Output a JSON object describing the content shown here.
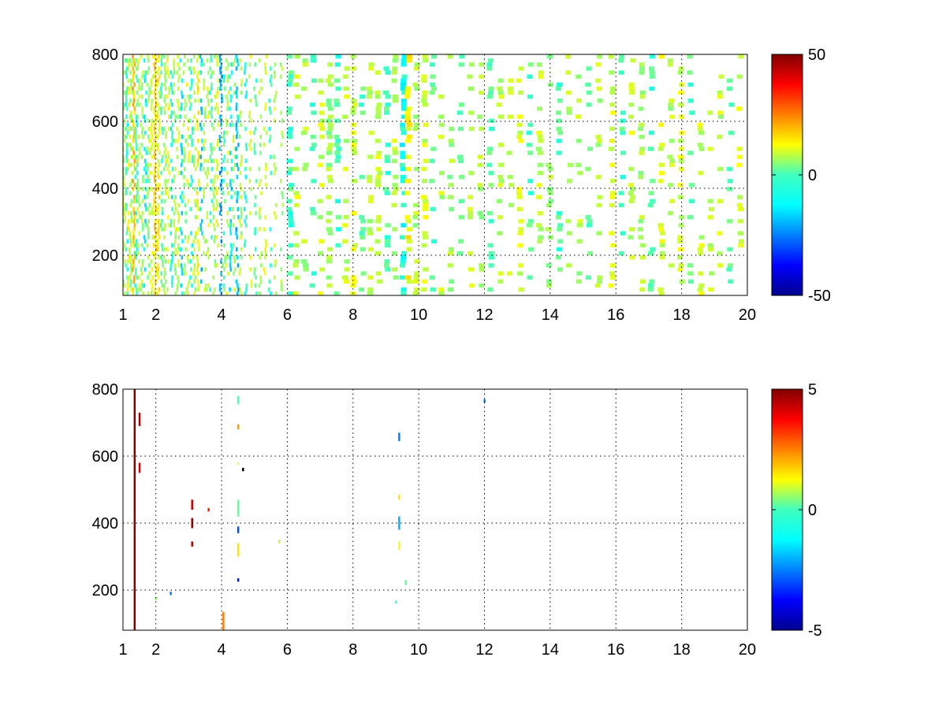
{
  "chart_data": [
    {
      "type": "heatmap",
      "panel": "top",
      "xlim": [
        1,
        20
      ],
      "ylim": [
        80,
        800
      ],
      "x_ticks": [
        1,
        2,
        4,
        6,
        8,
        10,
        12,
        14,
        16,
        18,
        20
      ],
      "y_ticks": [
        200,
        400,
        600,
        800
      ],
      "grid": true,
      "colorbar": {
        "min": -50,
        "max": 50,
        "ticks": [
          50,
          0,
          -50
        ],
        "colormap": "jet"
      },
      "columns": [
        {
          "x": 1.0,
          "v": 5,
          "d": 0.55
        },
        {
          "x": 1.08,
          "v": -8,
          "d": 0.6
        },
        {
          "x": 1.15,
          "v": 10,
          "d": 0.5
        },
        {
          "x": 1.22,
          "v": 3,
          "d": 0.6
        },
        {
          "x": 1.3,
          "v": 18,
          "d": 0.92
        },
        {
          "x": 1.38,
          "v": -6,
          "d": 0.55
        },
        {
          "x": 1.45,
          "v": 6,
          "d": 0.6
        },
        {
          "x": 1.55,
          "v": 4,
          "d": 0.55
        },
        {
          "x": 1.65,
          "v": -12,
          "d": 0.5
        },
        {
          "x": 1.75,
          "v": 2,
          "d": 0.6
        },
        {
          "x": 1.85,
          "v": 8,
          "d": 0.5
        },
        {
          "x": 1.95,
          "v": 15,
          "d": 0.85
        },
        {
          "x": 2.05,
          "v": 12,
          "d": 0.8
        },
        {
          "x": 2.15,
          "v": -5,
          "d": 0.55
        },
        {
          "x": 2.25,
          "v": 4,
          "d": 0.6
        },
        {
          "x": 2.35,
          "v": 10,
          "d": 0.5
        },
        {
          "x": 2.45,
          "v": -10,
          "d": 0.5
        },
        {
          "x": 2.55,
          "v": 3,
          "d": 0.55
        },
        {
          "x": 2.65,
          "v": 6,
          "d": 0.5
        },
        {
          "x": 2.75,
          "v": -14,
          "d": 0.55
        },
        {
          "x": 2.85,
          "v": 2,
          "d": 0.5
        },
        {
          "x": 2.95,
          "v": 9,
          "d": 0.45
        },
        {
          "x": 3.05,
          "v": -8,
          "d": 0.5
        },
        {
          "x": 3.15,
          "v": 5,
          "d": 0.45
        },
        {
          "x": 3.25,
          "v": 12,
          "d": 0.5
        },
        {
          "x": 3.35,
          "v": -16,
          "d": 0.45
        },
        {
          "x": 3.45,
          "v": 4,
          "d": 0.45
        },
        {
          "x": 3.55,
          "v": 7,
          "d": 0.4
        },
        {
          "x": 3.65,
          "v": -6,
          "d": 0.45
        },
        {
          "x": 3.75,
          "v": 3,
          "d": 0.4
        },
        {
          "x": 3.85,
          "v": 10,
          "d": 0.45
        },
        {
          "x": 3.95,
          "v": -20,
          "d": 0.55
        },
        {
          "x": 4.05,
          "v": -4,
          "d": 0.4
        },
        {
          "x": 4.15,
          "v": 6,
          "d": 0.4
        },
        {
          "x": 4.25,
          "v": -12,
          "d": 0.4
        },
        {
          "x": 4.35,
          "v": 3,
          "d": 0.35
        },
        {
          "x": 4.45,
          "v": -18,
          "d": 0.6
        },
        {
          "x": 4.55,
          "v": 5,
          "d": 0.4
        },
        {
          "x": 4.7,
          "v": -9,
          "d": 0.4
        },
        {
          "x": 4.85,
          "v": 8,
          "d": 0.35
        },
        {
          "x": 5.0,
          "v": -5,
          "d": 0.35
        },
        {
          "x": 5.15,
          "v": 4,
          "d": 0.35
        },
        {
          "x": 5.3,
          "v": 10,
          "d": 0.35
        },
        {
          "x": 5.45,
          "v": -7,
          "d": 0.3
        },
        {
          "x": 5.6,
          "v": 6,
          "d": 0.3
        },
        {
          "x": 5.8,
          "v": 3,
          "d": 0.3
        },
        {
          "x": 6.0,
          "v": -6,
          "d": 0.3
        },
        {
          "x": 6.2,
          "v": 8,
          "d": 0.3
        },
        {
          "x": 6.45,
          "v": 4,
          "d": 0.28
        },
        {
          "x": 6.7,
          "v": -5,
          "d": 0.28
        },
        {
          "x": 6.95,
          "v": 7,
          "d": 0.28
        },
        {
          "x": 7.2,
          "v": 3,
          "d": 0.26
        },
        {
          "x": 7.45,
          "v": -6,
          "d": 0.26
        },
        {
          "x": 7.7,
          "v": 6,
          "d": 0.26
        },
        {
          "x": 7.95,
          "v": 8,
          "d": 0.3
        },
        {
          "x": 8.2,
          "v": -4,
          "d": 0.26
        },
        {
          "x": 8.45,
          "v": 5,
          "d": 0.26
        },
        {
          "x": 8.7,
          "v": 7,
          "d": 0.26
        },
        {
          "x": 8.95,
          "v": -5,
          "d": 0.28
        },
        {
          "x": 9.2,
          "v": 6,
          "d": 0.3
        },
        {
          "x": 9.45,
          "v": -10,
          "d": 0.55
        },
        {
          "x": 9.6,
          "v": 12,
          "d": 0.4
        },
        {
          "x": 9.85,
          "v": 5,
          "d": 0.3
        },
        {
          "x": 10.1,
          "v": 8,
          "d": 0.4
        },
        {
          "x": 10.35,
          "v": -4,
          "d": 0.28
        },
        {
          "x": 10.6,
          "v": 6,
          "d": 0.25
        },
        {
          "x": 10.9,
          "v": 3,
          "d": 0.25
        },
        {
          "x": 11.2,
          "v": -5,
          "d": 0.25
        },
        {
          "x": 11.5,
          "v": 7,
          "d": 0.25
        },
        {
          "x": 11.8,
          "v": 4,
          "d": 0.25
        },
        {
          "x": 12.1,
          "v": -3,
          "d": 0.22
        },
        {
          "x": 12.4,
          "v": 6,
          "d": 0.22
        },
        {
          "x": 12.7,
          "v": 5,
          "d": 0.22
        },
        {
          "x": 13.0,
          "v": 8,
          "d": 0.3
        },
        {
          "x": 13.3,
          "v": -4,
          "d": 0.22
        },
        {
          "x": 13.6,
          "v": 6,
          "d": 0.22
        },
        {
          "x": 13.9,
          "v": 4,
          "d": 0.24
        },
        {
          "x": 14.2,
          "v": -5,
          "d": 0.24
        },
        {
          "x": 14.5,
          "v": 7,
          "d": 0.22
        },
        {
          "x": 14.8,
          "v": 5,
          "d": 0.22
        },
        {
          "x": 15.1,
          "v": -3,
          "d": 0.22
        },
        {
          "x": 15.4,
          "v": 6,
          "d": 0.2
        },
        {
          "x": 15.8,
          "v": 8,
          "d": 0.32
        },
        {
          "x": 16.1,
          "v": -5,
          "d": 0.24
        },
        {
          "x": 16.4,
          "v": 7,
          "d": 0.24
        },
        {
          "x": 16.7,
          "v": 4,
          "d": 0.24
        },
        {
          "x": 17.0,
          "v": -6,
          "d": 0.3
        },
        {
          "x": 17.3,
          "v": 9,
          "d": 0.3
        },
        {
          "x": 17.6,
          "v": 5,
          "d": 0.26
        },
        {
          "x": 17.9,
          "v": 8,
          "d": 0.32
        },
        {
          "x": 18.2,
          "v": -4,
          "d": 0.2
        },
        {
          "x": 18.5,
          "v": 7,
          "d": 0.28
        },
        {
          "x": 18.8,
          "v": 5,
          "d": 0.2
        },
        {
          "x": 19.1,
          "v": 6,
          "d": 0.18
        },
        {
          "x": 19.4,
          "v": -3,
          "d": 0.16
        },
        {
          "x": 19.7,
          "v": 8,
          "d": 0.2
        }
      ]
    },
    {
      "type": "heatmap",
      "panel": "bottom",
      "xlim": [
        1,
        20
      ],
      "ylim": [
        80,
        800
      ],
      "x_ticks": [
        1,
        2,
        4,
        6,
        8,
        10,
        12,
        14,
        16,
        18,
        20
      ],
      "y_ticks": [
        200,
        400,
        600,
        800
      ],
      "grid": true,
      "colorbar": {
        "min": -5,
        "max": 5,
        "ticks": [
          5,
          0,
          -5
        ],
        "colormap": "jet"
      },
      "segments": [
        {
          "x": 1.35,
          "y0": 80,
          "y1": 800,
          "v": 5
        },
        {
          "x": 1.5,
          "y0": 690,
          "y1": 730,
          "v": 4.6
        },
        {
          "x": 1.5,
          "y0": 550,
          "y1": 580,
          "v": 4.2
        },
        {
          "x": 3.1,
          "y0": 385,
          "y1": 415,
          "v": 4.8
        },
        {
          "x": 3.1,
          "y0": 440,
          "y1": 470,
          "v": 4.2
        },
        {
          "x": 3.1,
          "y0": 330,
          "y1": 345,
          "v": 4.5
        },
        {
          "x": 3.6,
          "y0": 435,
          "y1": 445,
          "v": 3.5
        },
        {
          "x": 4.05,
          "y0": 80,
          "y1": 135,
          "v": 2.5
        },
        {
          "x": 4.5,
          "y0": 755,
          "y1": 780,
          "v": -0.5
        },
        {
          "x": 4.5,
          "y0": 680,
          "y1": 695,
          "v": 2.2
        },
        {
          "x": 4.5,
          "y0": 575,
          "y1": 580,
          "v": 0.5
        },
        {
          "x": 4.5,
          "y0": 420,
          "y1": 470,
          "v": -0.3
        },
        {
          "x": 4.5,
          "y0": 370,
          "y1": 390,
          "v": -3.0
        },
        {
          "x": 4.5,
          "y0": 300,
          "y1": 340,
          "v": 1.5
        },
        {
          "x": 4.5,
          "y0": 225,
          "y1": 235,
          "v": -3.5
        },
        {
          "x": 4.65,
          "y0": 555,
          "y1": 565,
          "v": -6
        },
        {
          "x": 5.75,
          "y0": 340,
          "y1": 350,
          "v": 0.5
        },
        {
          "x": 9.4,
          "y0": 645,
          "y1": 670,
          "v": -2.5
        },
        {
          "x": 9.4,
          "y0": 470,
          "y1": 485,
          "v": 1.5
        },
        {
          "x": 9.4,
          "y0": 380,
          "y1": 420,
          "v": -2.0
        },
        {
          "x": 9.4,
          "y0": 320,
          "y1": 345,
          "v": 1.2
        },
        {
          "x": 9.6,
          "y0": 215,
          "y1": 230,
          "v": -0.3
        },
        {
          "x": 9.3,
          "y0": 160,
          "y1": 168,
          "v": -0.6
        },
        {
          "x": 12.0,
          "y0": 760,
          "y1": 770,
          "v": -2.5
        },
        {
          "x": 2.45,
          "y0": 185,
          "y1": 195,
          "v": -2.5
        },
        {
          "x": 2.0,
          "y0": 170,
          "y1": 180,
          "v": 0.2
        }
      ]
    }
  ]
}
